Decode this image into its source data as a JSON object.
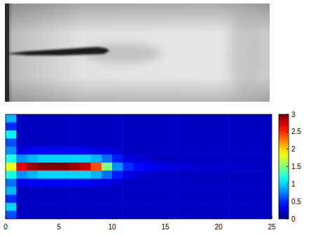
{
  "chart_data": {
    "type": "heatmap",
    "xlim": [
      0,
      25
    ],
    "xticks": [
      0,
      5,
      10,
      15,
      20,
      25
    ],
    "tick_labels": "x",
    "colorbar_lim": [
      0,
      3
    ],
    "colorbar_ticks": [
      0,
      0.5,
      1,
      1.5,
      2,
      2.5,
      3
    ],
    "cells": [
      [
        0.9,
        0.2,
        0.2,
        0.2,
        0.2,
        0.2,
        0.2,
        0.2,
        0.2,
        0.2,
        0.2,
        0.2,
        0.2,
        0.2,
        0.2,
        0.2,
        0.2,
        0.2,
        0.2,
        0.2,
        0.2,
        0.2,
        0.2,
        0.2,
        0.2
      ],
      [
        0.5,
        0.2,
        0.2,
        0.2,
        0.2,
        0.2,
        0.2,
        0.2,
        0.2,
        0.2,
        0.2,
        0.2,
        0.2,
        0.2,
        0.2,
        0.2,
        0.2,
        0.2,
        0.2,
        0.2,
        0.2,
        0.2,
        0.2,
        0.2,
        0.2
      ],
      [
        1.1,
        0.2,
        0.2,
        0.2,
        0.2,
        0.2,
        0.2,
        0.2,
        0.2,
        0.2,
        0.2,
        0.2,
        0.2,
        0.2,
        0.2,
        0.2,
        0.2,
        0.2,
        0.2,
        0.2,
        0.2,
        0.2,
        0.2,
        0.2,
        0.2
      ],
      [
        0.6,
        0.2,
        0.2,
        0.2,
        0.2,
        0.2,
        0.2,
        0.2,
        0.2,
        0.2,
        0.2,
        0.2,
        0.2,
        0.2,
        0.2,
        0.2,
        0.2,
        0.2,
        0.2,
        0.2,
        0.2,
        0.2,
        0.2,
        0.2,
        0.2
      ],
      [
        0.8,
        0.3,
        0.35,
        0.35,
        0.35,
        0.35,
        0.35,
        0.35,
        0.3,
        0.3,
        0.25,
        0.2,
        0.2,
        0.2,
        0.2,
        0.2,
        0.2,
        0.2,
        0.2,
        0.2,
        0.2,
        0.2,
        0.2,
        0.2,
        0.2
      ],
      [
        1.2,
        0.8,
        0.9,
        1.0,
        1.0,
        1.0,
        1.0,
        1.0,
        0.9,
        0.7,
        0.45,
        0.3,
        0.25,
        0.22,
        0.2,
        0.2,
        0.2,
        0.2,
        0.2,
        0.2,
        0.2,
        0.2,
        0.2,
        0.2,
        0.2
      ],
      [
        1.8,
        2.7,
        2.9,
        3.0,
        3.0,
        3.0,
        2.9,
        2.8,
        2.4,
        1.5,
        0.8,
        0.5,
        0.4,
        0.35,
        0.3,
        0.28,
        0.26,
        0.25,
        0.24,
        0.23,
        0.22,
        0.22,
        0.21,
        0.21,
        0.2
      ],
      [
        1.2,
        0.8,
        0.9,
        1.0,
        1.0,
        1.0,
        1.0,
        1.0,
        0.9,
        0.7,
        0.45,
        0.3,
        0.25,
        0.22,
        0.2,
        0.2,
        0.2,
        0.2,
        0.2,
        0.2,
        0.2,
        0.2,
        0.2,
        0.2,
        0.2
      ],
      [
        0.7,
        0.3,
        0.35,
        0.35,
        0.35,
        0.35,
        0.35,
        0.35,
        0.3,
        0.3,
        0.25,
        0.2,
        0.2,
        0.2,
        0.2,
        0.2,
        0.2,
        0.2,
        0.2,
        0.2,
        0.2,
        0.2,
        0.2,
        0.2,
        0.2
      ],
      [
        0.9,
        0.2,
        0.2,
        0.2,
        0.2,
        0.2,
        0.2,
        0.2,
        0.2,
        0.2,
        0.2,
        0.2,
        0.2,
        0.2,
        0.2,
        0.2,
        0.2,
        0.2,
        0.2,
        0.2,
        0.2,
        0.2,
        0.2,
        0.2,
        0.2
      ],
      [
        0.5,
        0.2,
        0.2,
        0.2,
        0.2,
        0.2,
        0.2,
        0.2,
        0.2,
        0.2,
        0.2,
        0.2,
        0.2,
        0.2,
        0.2,
        0.2,
        0.2,
        0.2,
        0.2,
        0.2,
        0.2,
        0.2,
        0.2,
        0.2,
        0.2
      ],
      [
        1.0,
        0.2,
        0.2,
        0.2,
        0.2,
        0.2,
        0.2,
        0.2,
        0.2,
        0.2,
        0.2,
        0.2,
        0.2,
        0.2,
        0.2,
        0.2,
        0.2,
        0.2,
        0.2,
        0.2,
        0.2,
        0.2,
        0.2,
        0.2,
        0.2
      ],
      [
        0.6,
        0.2,
        0.2,
        0.2,
        0.2,
        0.2,
        0.2,
        0.2,
        0.2,
        0.2,
        0.2,
        0.2,
        0.2,
        0.2,
        0.2,
        0.2,
        0.2,
        0.2,
        0.2,
        0.2,
        0.2,
        0.2,
        0.2,
        0.2,
        0.2
      ]
    ]
  }
}
